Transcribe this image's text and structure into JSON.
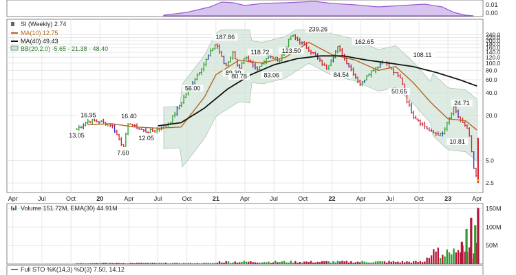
{
  "colors": {
    "up": "#2e9d2e",
    "down": "#d21f2f",
    "ma10": "#b5651d",
    "ma40": "#111111",
    "bb_fill": "#cfe3d6",
    "rsi_fill": "#d8c4f0",
    "rsi_line": "#9b59d0",
    "vol_up": "#2e9d2e",
    "vol_down": "#b5173a",
    "panel_border": "#666666",
    "grid": "#e6e6e6"
  },
  "top_panel": {
    "tick_labels": [
      "0.01",
      "0.00"
    ]
  },
  "price_panel": {
    "legend": {
      "symbol": "SI (Weekly) 2.74",
      "ma10": "MA(10) 12.75",
      "ma40": "MA(40) 49.43",
      "bb": "BB(20,2.0) -5.65 - 21.38 - 48.40"
    },
    "annotations": [
      "16.95",
      "13.05",
      "7.60",
      "16.40",
      "12.05",
      "56.00",
      "187.86",
      "89.30",
      "80.78",
      "118.72",
      "83.06",
      "123.50",
      "239.26",
      "84.54",
      "162.65",
      "50.65",
      "108.11",
      "24.71",
      "10.81"
    ],
    "y_tick_labels": [
      "240.0",
      "220.0",
      "200.0",
      "180.0",
      "160.0",
      "140.0",
      "120.0",
      "100.0",
      "80.0",
      "60.0",
      "40.0",
      "20.0",
      "5.0",
      "2.5"
    ]
  },
  "x_axis": {
    "labels": [
      "Apr",
      "Jul",
      "Oct",
      "20",
      "Apr",
      "Jul",
      "Oct",
      "21",
      "Apr",
      "Jul",
      "Oct",
      "22",
      "Apr",
      "Jul",
      "Oct",
      "23",
      "Apr"
    ]
  },
  "volume_panel": {
    "legend": "Volume 151.72M, EMA(30) 44.91M",
    "y_tick_labels": [
      "150M",
      "100M",
      "50M"
    ]
  },
  "sto_panel": {
    "legend": "Full STO %K(14,3) %D(3) 7.50, 14.12"
  },
  "chart_data": {
    "type": "line",
    "scale": "log",
    "series": [
      {
        "name": "SI (Weekly)",
        "x": [
          2019.8,
          2019.9,
          2020.0,
          2020.1,
          2020.2,
          2020.25,
          2020.3,
          2020.4,
          2020.5,
          2020.6,
          2020.7,
          2020.8,
          2020.9,
          2021.0,
          2021.08,
          2021.15,
          2021.2,
          2021.25,
          2021.35,
          2021.45,
          2021.55,
          2021.65,
          2021.75,
          2021.85,
          2021.95,
          2022.05,
          2022.1,
          2022.25,
          2022.3,
          2022.45,
          2022.5,
          2022.6,
          2022.65,
          2022.7,
          2022.85,
          2022.95,
          2023.05,
          2023.1,
          2023.18,
          2023.22,
          2023.25
        ],
        "values": [
          13.05,
          16.95,
          16.5,
          15.0,
          7.6,
          16.4,
          14.0,
          12.05,
          13.0,
          16.0,
          30.0,
          56.0,
          100.0,
          187.86,
          89.3,
          140.0,
          80.78,
          118.72,
          83.06,
          123.5,
          110.0,
          239.26,
          180.0,
          130.0,
          84.54,
          162.65,
          120.0,
          50.65,
          70.0,
          108.11,
          85.0,
          60.0,
          30.0,
          20.0,
          12.0,
          10.81,
          24.71,
          18.0,
          12.0,
          4.0,
          2.74
        ]
      },
      {
        "name": "MA(10)",
        "x": [
          2019.9,
          2020.1,
          2020.3,
          2020.5,
          2020.7,
          2020.9,
          2021.0,
          2021.2,
          2021.4,
          2021.6,
          2021.8,
          2022.0,
          2022.2,
          2022.4,
          2022.55,
          2022.7,
          2022.85,
          2023.0,
          2023.15,
          2023.25
        ],
        "values": [
          15,
          15.5,
          14,
          13.5,
          14,
          35,
          70,
          110,
          100,
          120,
          190,
          130,
          110,
          80,
          90,
          55,
          30,
          18,
          17,
          12.75
        ]
      },
      {
        "name": "MA(40)",
        "x": [
          2020.5,
          2020.7,
          2020.9,
          2021.1,
          2021.3,
          2021.5,
          2021.7,
          2021.9,
          2022.1,
          2022.3,
          2022.5,
          2022.7,
          2022.9,
          2023.1,
          2023.25
        ],
        "values": [
          14.5,
          16,
          25,
          45,
          70,
          95,
          115,
          125,
          125,
          110,
          100,
          90,
          75,
          60,
          49.43
        ]
      }
    ],
    "volume": {
      "title": "Volume",
      "last": "151.72M",
      "ema30": "44.91M",
      "ylim": [
        0,
        160
      ]
    },
    "ylim": [
      2.5,
      240
    ],
    "grid": true
  }
}
